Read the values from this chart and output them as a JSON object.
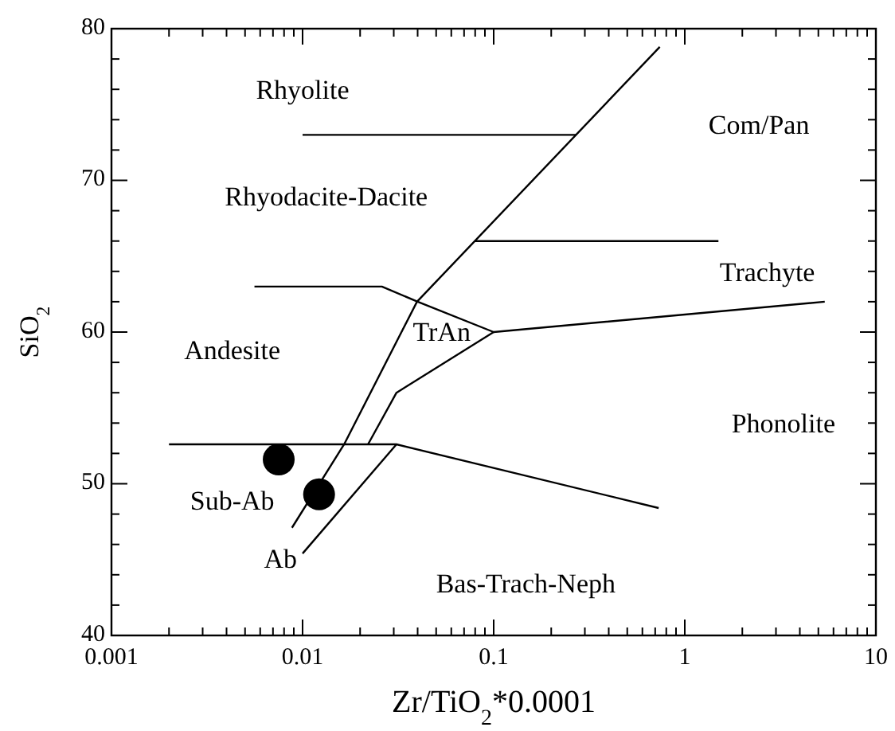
{
  "chart_data": {
    "type": "scatter",
    "xlabel": "Zr/TiO$_{2}$*0.0001",
    "ylabel": "SiO$_{2}$",
    "log": "x",
    "grid": false,
    "xlim": [
      0.001,
      10
    ],
    "ylim": [
      40,
      80
    ],
    "xticks": [
      0.001,
      {
        "value": 0.002,
        "label": null
      },
      {
        "value": 0.003,
        "label": null
      },
      {
        "value": 0.004,
        "label": null
      },
      {
        "value": 0.005,
        "label": null
      },
      {
        "value": 0.006,
        "label": null
      },
      {
        "value": 0.007,
        "label": null
      },
      {
        "value": 0.008,
        "label": null
      },
      {
        "value": 0.009,
        "label": null
      },
      0.01,
      {
        "value": 0.02,
        "label": null
      },
      {
        "value": 0.03,
        "label": null
      },
      {
        "value": 0.04,
        "label": null
      },
      {
        "value": 0.05,
        "label": null
      },
      {
        "value": 0.06,
        "label": null
      },
      {
        "value": 0.07,
        "label": null
      },
      {
        "value": 0.08,
        "label": null
      },
      {
        "value": 0.09,
        "label": null
      },
      0.1,
      {
        "value": 0.2,
        "label": null
      },
      {
        "value": 0.3,
        "label": null
      },
      {
        "value": 0.4,
        "label": null
      },
      {
        "value": 0.5,
        "label": null
      },
      {
        "value": 0.6,
        "label": null
      },
      {
        "value": 0.7,
        "label": null
      },
      {
        "value": 0.8,
        "label": null
      },
      {
        "value": 0.9,
        "label": null
      },
      1,
      {
        "value": 2,
        "label": null
      },
      {
        "value": 3,
        "label": null
      },
      {
        "value": 4,
        "label": null
      },
      {
        "value": 5,
        "label": null
      },
      {
        "value": 6,
        "label": null
      },
      {
        "value": 7,
        "label": null
      },
      {
        "value": 8,
        "label": null
      },
      {
        "value": 9,
        "label": null
      },
      10
    ],
    "yticks": [
      40,
      {
        "value": 42,
        "label": null
      },
      {
        "value": 44,
        "label": null
      },
      {
        "value": 46,
        "label": null
      },
      {
        "value": 48,
        "label": null
      },
      50,
      {
        "value": 52,
        "label": null
      },
      {
        "value": 54,
        "label": null
      },
      {
        "value": 56,
        "label": null
      },
      {
        "value": 58,
        "label": null
      },
      60,
      {
        "value": 62,
        "label": null
      },
      {
        "value": 64,
        "label": null
      },
      {
        "value": 66,
        "label": null
      },
      {
        "value": 68,
        "label": null
      },
      70,
      {
        "value": 72,
        "label": null
      },
      {
        "value": 74,
        "label": null
      },
      {
        "value": 76,
        "label": null
      },
      {
        "value": 78,
        "label": null
      },
      80
    ],
    "series": [
      {
        "type": "line",
        "color": "#000000",
        "x": [
          0.0088,
          0.0165,
          0.0397,
          0.74
        ],
        "values": [
          47.1,
          52.6,
          62,
          78.8
        ]
      },
      {
        "type": "line",
        "color": "#000000",
        "x": [
          0.01,
          0.27
        ],
        "values": [
          73,
          73
        ]
      },
      {
        "type": "line",
        "color": "#000000",
        "x": [
          0.08,
          1.5
        ],
        "values": [
          66,
          66
        ]
      },
      {
        "type": "line",
        "color": "#000000",
        "x": [
          0.0056,
          0.026,
          0.04,
          0.1,
          5.4
        ],
        "values": [
          63,
          63,
          62,
          60,
          62
        ]
      },
      {
        "type": "line",
        "color": "#000000",
        "x": [
          0.1,
          0.031,
          0.022
        ],
        "values": [
          60,
          56,
          52.6
        ]
      },
      {
        "type": "line",
        "color": "#000000",
        "x": [
          0.002,
          0.031,
          0.73
        ],
        "values": [
          52.6,
          52.6,
          48.4
        ]
      },
      {
        "type": "line",
        "color": "#000000",
        "x": [
          0.01,
          0.031
        ],
        "values": [
          45.4,
          52.6
        ]
      },
      {
        "color": "#000000",
        "marker": "circle",
        "x": [
          0.0075,
          0.0122
        ],
        "values": [
          51.6,
          49.3
        ]
      }
    ],
    "annotations": [
      "Rhyolite",
      "Com/Pan",
      "Rhyodacite-Dacite",
      "Trachyte",
      "TrAn",
      "Andesite",
      "Phonolite",
      "Sub-Ab",
      "Ab",
      "Bas-Trach-Neph"
    ]
  }
}
